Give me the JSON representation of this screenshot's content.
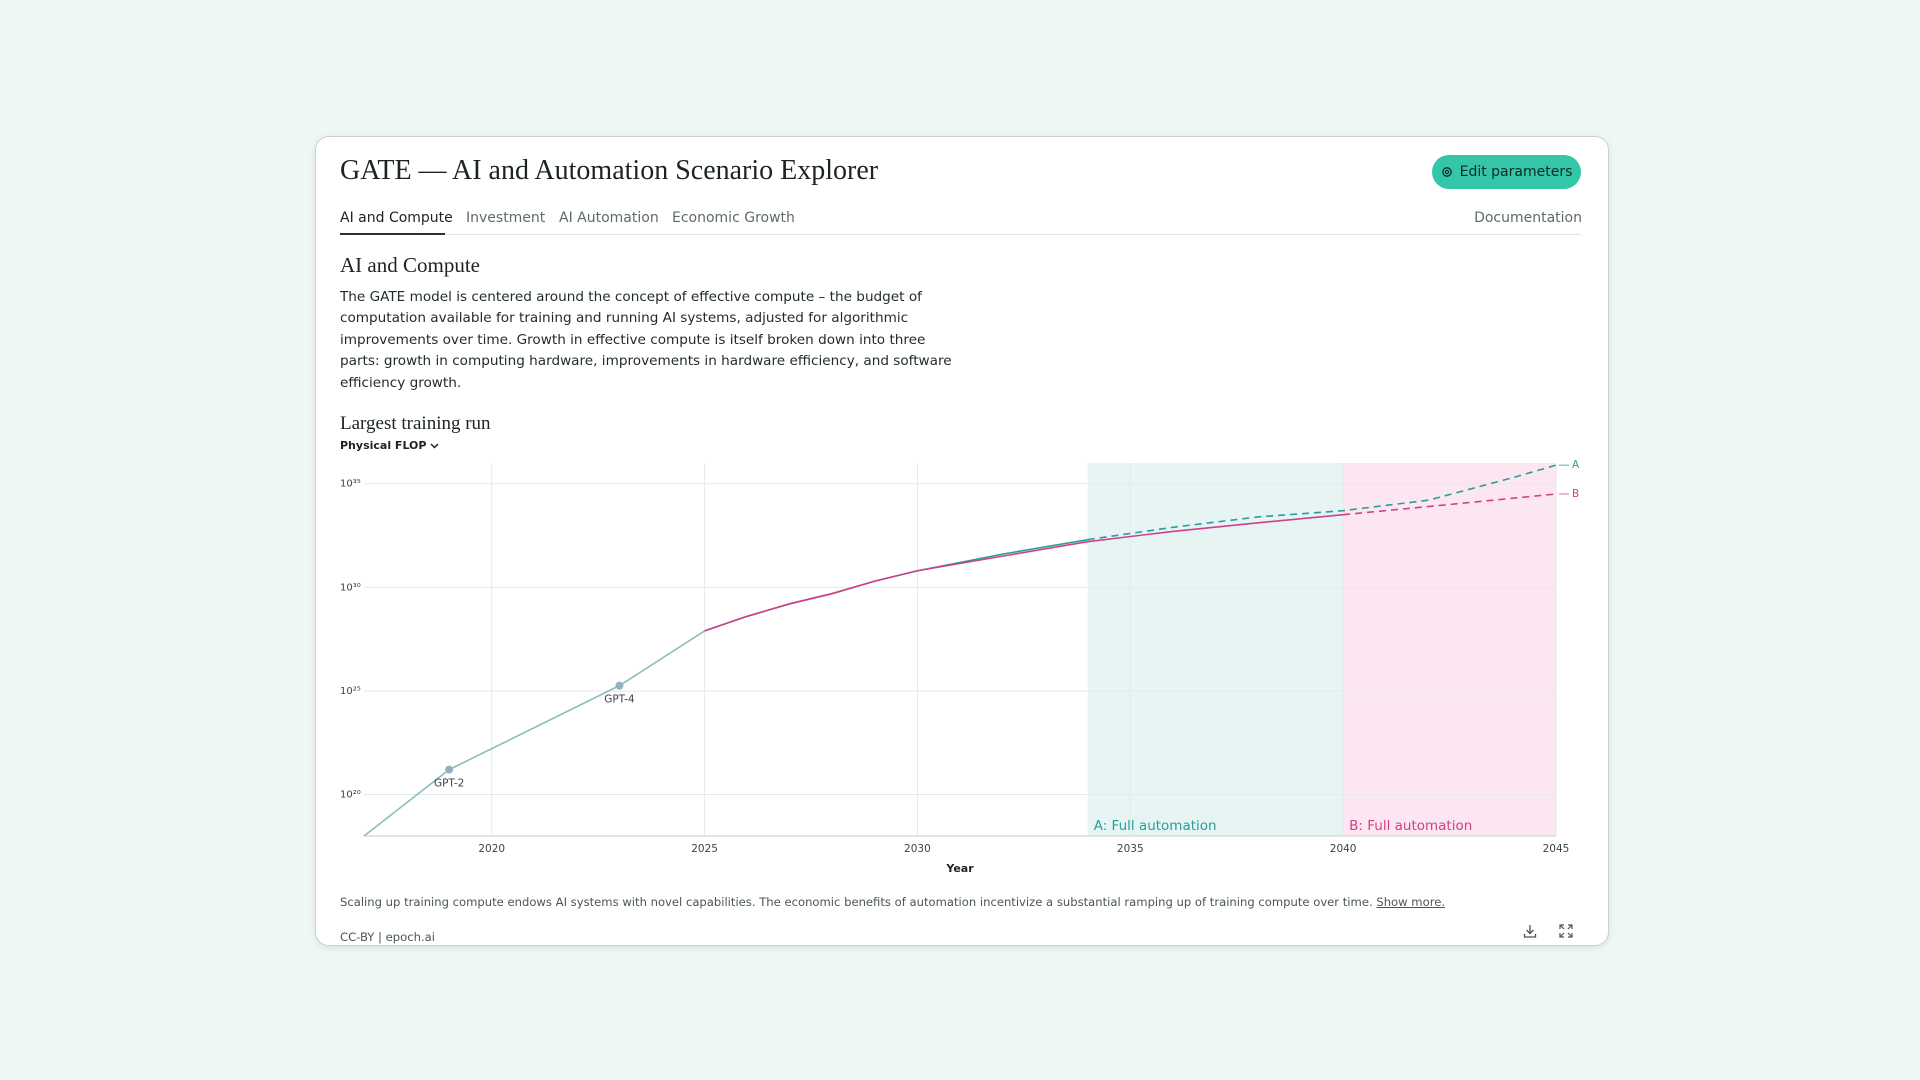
{
  "header": {
    "title": "GATE — AI and Automation Scenario Explorer",
    "button": "Edit parameters"
  },
  "tabs": [
    "AI and Compute",
    "Investment",
    "AI Automation",
    "Economic Growth"
  ],
  "documentation": "Documentation",
  "section": {
    "title": "AI and Compute",
    "body": "The GATE model is centered around the concept of effective compute – the budget of computation available for training and running AI systems, adjusted for algorithmic improvements over time. Growth in effective compute is itself broken down into three parts: growth in computing hardware, improvements in hardware efficiency, and software efficiency growth."
  },
  "chart_data": {
    "type": "line",
    "title": "Largest training run",
    "metric": "Physical FLOP",
    "xlabel": "Year",
    "xlim": [
      2017,
      2045
    ],
    "xticks": [
      2020,
      2025,
      2030,
      2035,
      2040,
      2045
    ],
    "ylim": [
      1e+18,
      1e+36
    ],
    "log_y": true,
    "grid": true,
    "yticks": [
      {
        "value": 1e+20,
        "label": "10²⁰"
      },
      {
        "value": 1e+25,
        "label": "10²⁵"
      },
      {
        "value": 1e+30,
        "label": "10³⁰"
      },
      {
        "value": 1e+35,
        "label": "10³⁵"
      }
    ],
    "series": [
      {
        "color": "#8cbcbc",
        "x": [
          2017,
          2019,
          2023,
          2025
        ],
        "values": [
          1e+18,
          1.6e+21,
          1.8e+25,
          7.9e+27
        ]
      },
      {
        "name": "A",
        "color": "#2a9d9a",
        "x": [
          2025,
          2026,
          2027,
          2028,
          2029,
          2030,
          2032,
          2034,
          2036,
          2038,
          2040,
          2042,
          2044,
          2045
        ],
        "values": [
          7.9e+27,
          4e+28,
          1.6e+29,
          5e+29,
          2e+30,
          6.3e+30,
          4e+31,
          2e+32,
          7.9e+32,
          2.5e+33,
          5e+33,
          1.6e+34,
          2e+35,
          7.9e+35
        ]
      },
      {
        "name": "B",
        "color": "#d0408a",
        "x": [
          2025,
          2026,
          2027,
          2028,
          2029,
          2030,
          2032,
          2034,
          2036,
          2038,
          2040,
          2042,
          2044,
          2045
        ],
        "values": [
          7.9e+27,
          4e+28,
          1.6e+29,
          5e+29,
          2e+30,
          6.3e+30,
          3.2e+31,
          1.6e+32,
          5e+32,
          1.3e+33,
          3.2e+33,
          7.9e+33,
          2e+34,
          3.2e+34
        ]
      }
    ],
    "regions": [
      {
        "label": "A: Full automation",
        "start": 2034,
        "end": 2040,
        "color": "#2a9d9a",
        "fill": "#e7f4f4"
      },
      {
        "label": "B: Full automation",
        "start": 2040,
        "end": 2045,
        "color": "#d0408a",
        "fill": "#fce6f1"
      }
    ],
    "annotations": [
      {
        "text": "GPT-2",
        "x": 2019,
        "y": 1.6e+21
      },
      {
        "text": "GPT-4",
        "x": 2023,
        "y": 1.8e+25
      }
    ]
  },
  "chart_caption": {
    "text": "Scaling up training compute endows AI systems with novel capabilities. The economic benefits of automation incentivize a substantial ramping up of training compute over time.",
    "link": "Show more."
  },
  "footer": {
    "license": "CC-BY | epoch.ai"
  }
}
